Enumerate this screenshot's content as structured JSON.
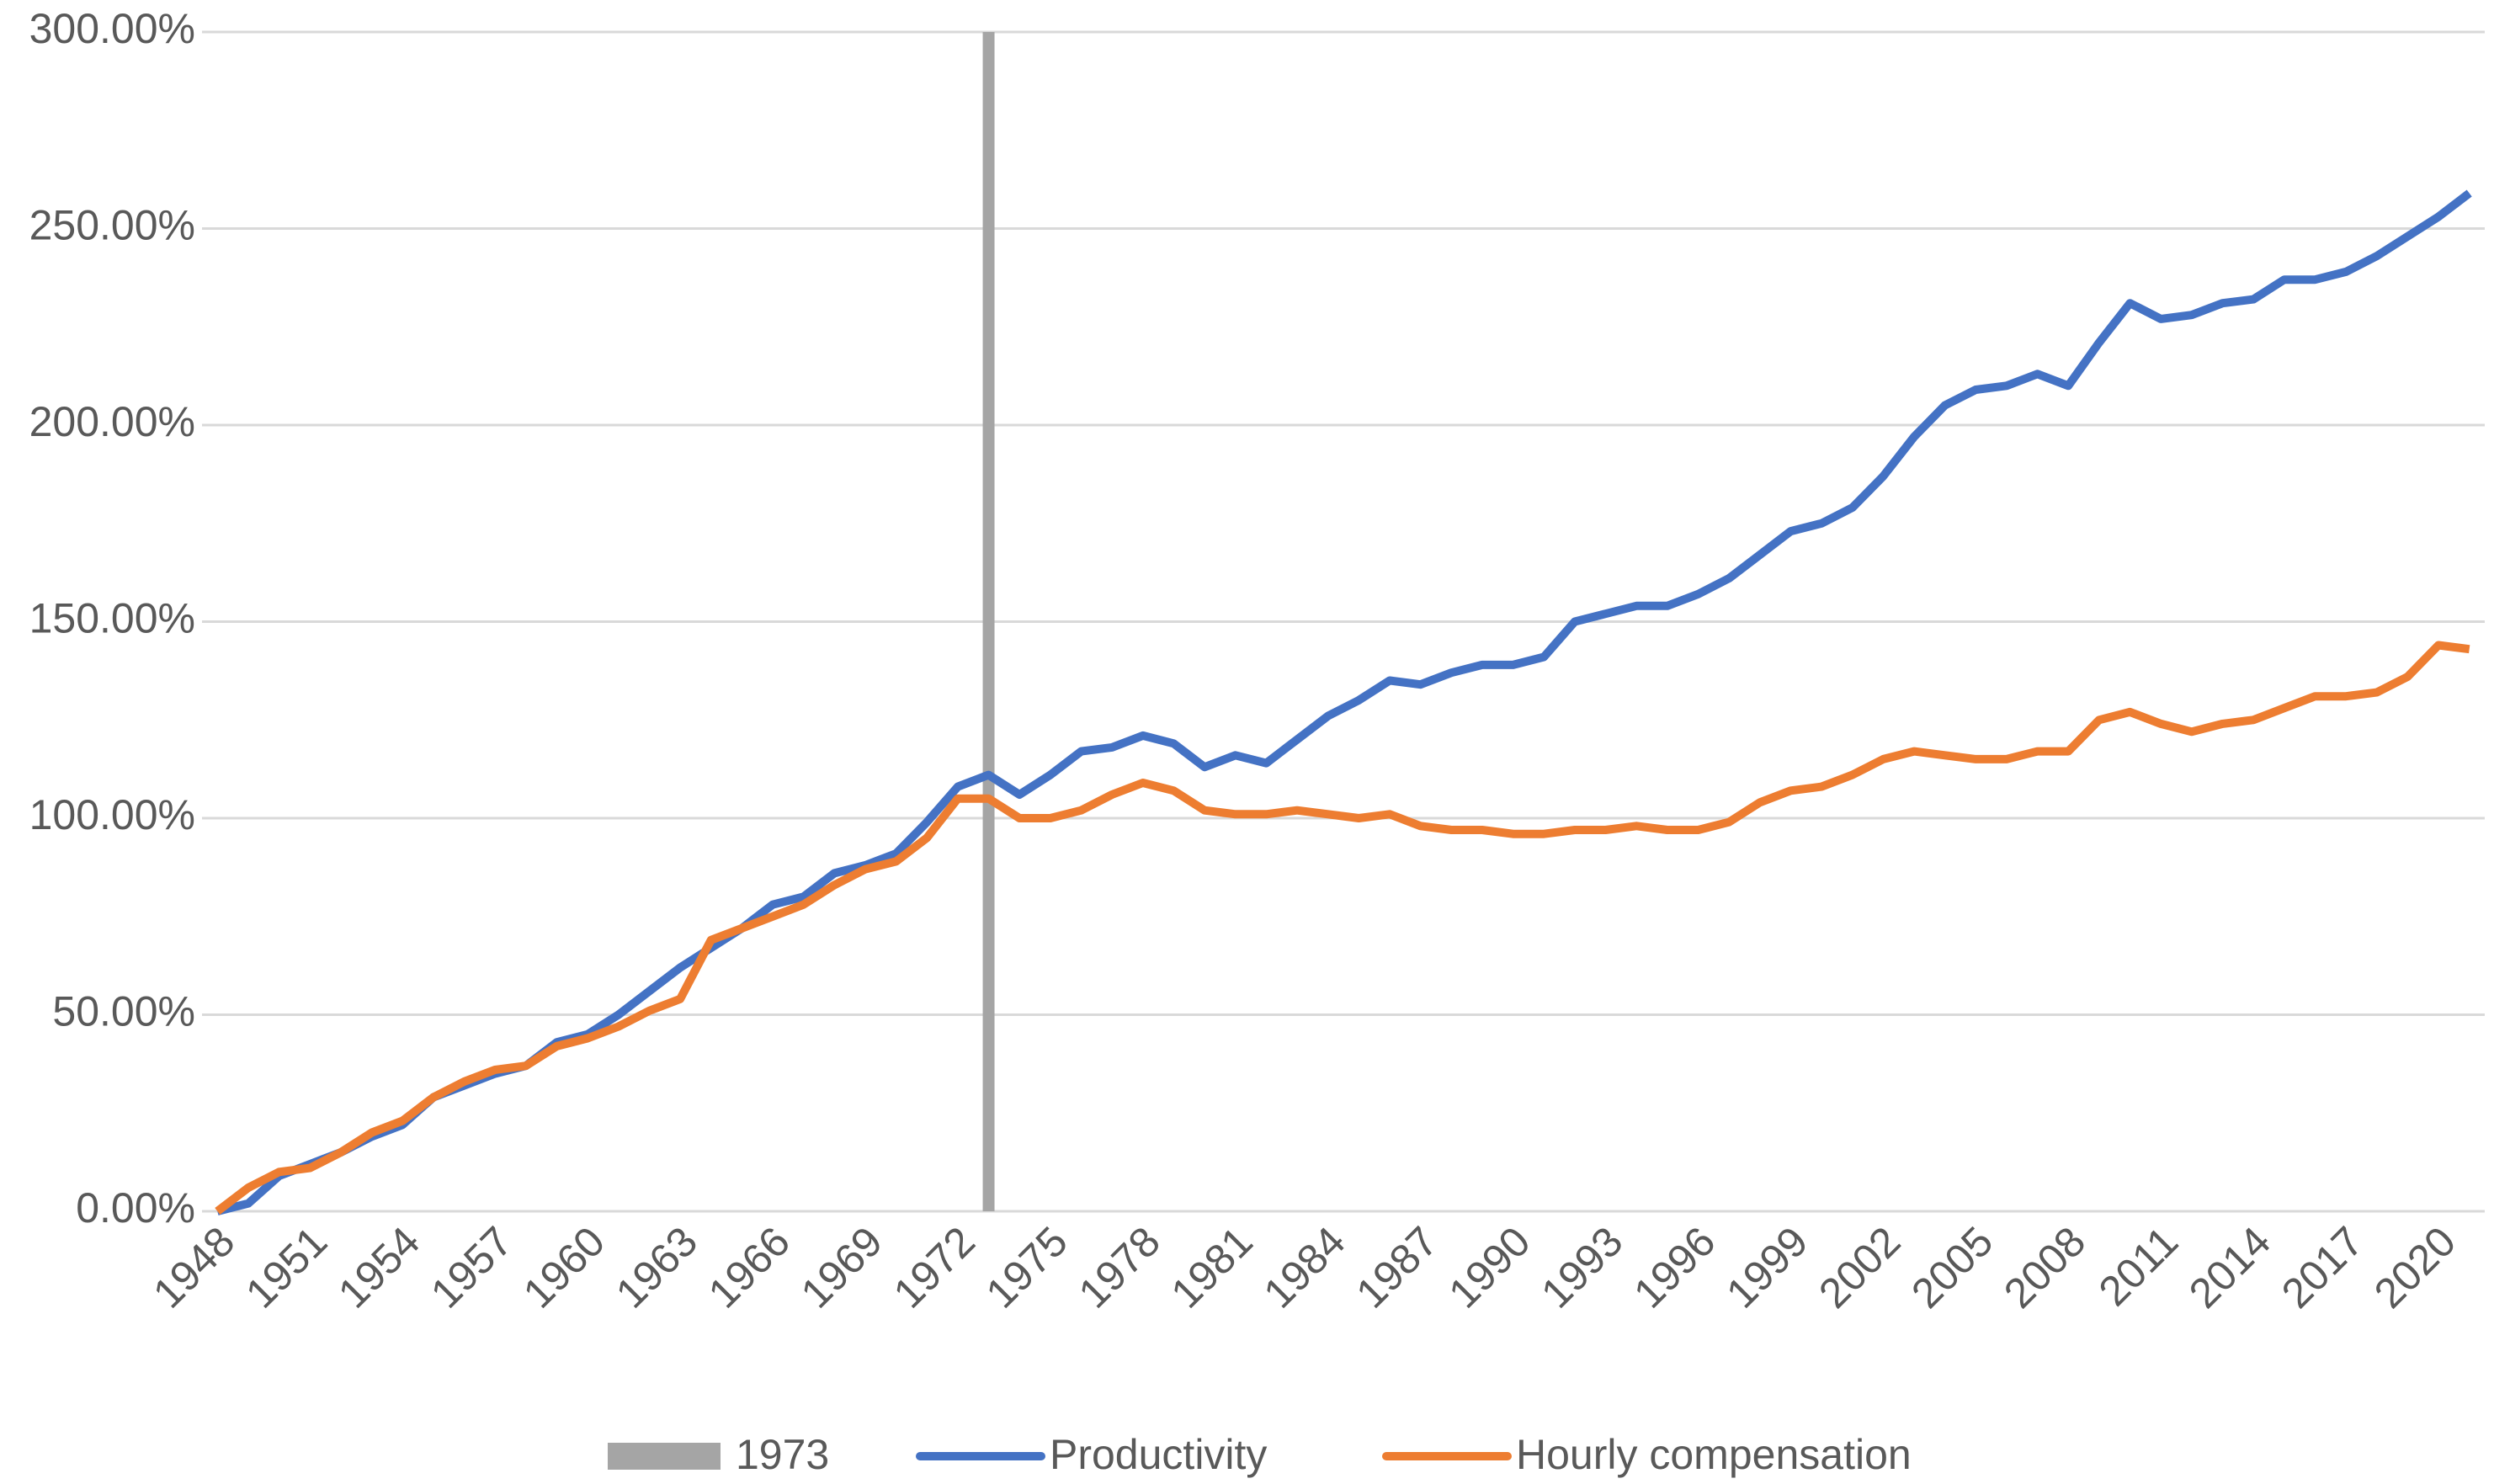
{
  "chart_data": {
    "type": "line",
    "categories": [
      "1948",
      null,
      null,
      "1951",
      null,
      null,
      "1954",
      null,
      null,
      "1957",
      null,
      null,
      "1960",
      null,
      null,
      "1963",
      null,
      null,
      "1966",
      null,
      null,
      "1969",
      null,
      null,
      "1972",
      null,
      null,
      "1975",
      null,
      null,
      "1978",
      null,
      null,
      "1981",
      null,
      null,
      "1984",
      null,
      null,
      "1987",
      null,
      null,
      "1990",
      null,
      null,
      "1993",
      null,
      null,
      "1996",
      null,
      null,
      "1999",
      null,
      null,
      "2002",
      null,
      null,
      "2005",
      null,
      null,
      "2008",
      null,
      null,
      "2011",
      null,
      null,
      "2014",
      null,
      null,
      "2017",
      null,
      null,
      "2020",
      null
    ],
    "series": [
      {
        "name": "1973",
        "type": "bar",
        "color": "#a5a5a5",
        "values": [
          null,
          null,
          null,
          null,
          null,
          null,
          null,
          null,
          null,
          null,
          null,
          null,
          null,
          null,
          null,
          null,
          null,
          null,
          null,
          null,
          null,
          null,
          null,
          null,
          null,
          300,
          null,
          null,
          null,
          null,
          null,
          null,
          null,
          null,
          null,
          null,
          null,
          null,
          null,
          null,
          null,
          null,
          null,
          null,
          null,
          null,
          null,
          null,
          null,
          null,
          null,
          null,
          null,
          null,
          null,
          null,
          null,
          null,
          null,
          null,
          null,
          null,
          null,
          null,
          null,
          null,
          null,
          null,
          null,
          null,
          null,
          null,
          null,
          null
        ]
      },
      {
        "name": "Productivity",
        "type": "line",
        "color": "#4472c4",
        "values": [
          0,
          2,
          9,
          12,
          15,
          19,
          22,
          29,
          32,
          35,
          37,
          43,
          45,
          50,
          56,
          62,
          67,
          72,
          78,
          80,
          86,
          88,
          91,
          99,
          108,
          111,
          106,
          111,
          117,
          118,
          121,
          119,
          113,
          116,
          114,
          120,
          126,
          130,
          135,
          134,
          137,
          139,
          139,
          141,
          150,
          152,
          154,
          154,
          157,
          161,
          167,
          173,
          175,
          179,
          187,
          197,
          205,
          209,
          210,
          213,
          210,
          221,
          231,
          227,
          228,
          231,
          232,
          237,
          237,
          239,
          243,
          248,
          253,
          259
        ]
      },
      {
        "name": "Hourly compensation",
        "type": "line",
        "color": "#ed7d31",
        "values": [
          0,
          6,
          10,
          11,
          15,
          20,
          23,
          29,
          33,
          36,
          37,
          42,
          44,
          47,
          51,
          54,
          69,
          72,
          75,
          78,
          83,
          87,
          89,
          95,
          105,
          105,
          100,
          100,
          102,
          106,
          109,
          107,
          102,
          101,
          101,
          102,
          101,
          100,
          101,
          98,
          97,
          97,
          96,
          96,
          97,
          97,
          98,
          97,
          97,
          99,
          104,
          107,
          108,
          111,
          115,
          117,
          116,
          115,
          115,
          117,
          117,
          125,
          127,
          124,
          122,
          124,
          125,
          128,
          131,
          131,
          132,
          136,
          144,
          143
        ]
      }
    ],
    "ylim": [
      0,
      300
    ],
    "yticks": [
      {
        "value": 0,
        "label": "0.00%"
      },
      {
        "value": 50,
        "label": "50.00%"
      },
      {
        "value": 100,
        "label": "100.00%"
      },
      {
        "value": 150,
        "label": "150.00%"
      },
      {
        "value": 200,
        "label": "200.00%"
      },
      {
        "value": 250,
        "label": "250.00%"
      },
      {
        "value": 300,
        "label": "300.00%"
      }
    ],
    "grid": true,
    "legend": "bottom"
  }
}
